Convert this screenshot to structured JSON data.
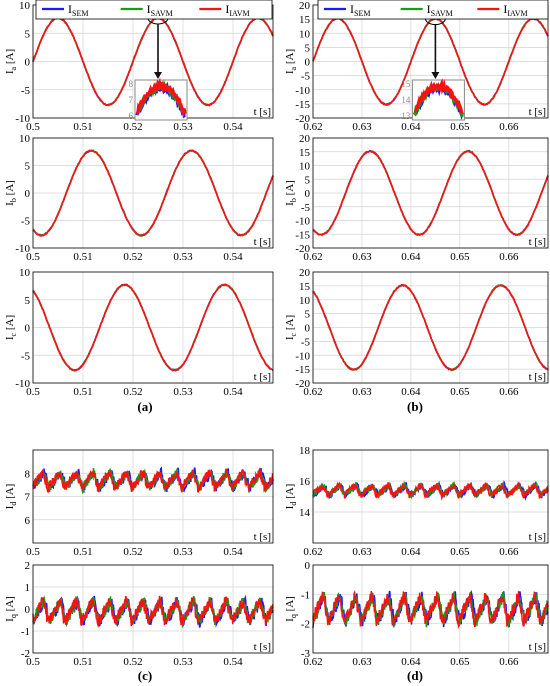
{
  "colors": {
    "sem": "#1a1aff",
    "savm": "#10a010",
    "iavm": "#ff1010",
    "arrow": "#111111",
    "zoom": "#888888"
  },
  "legend": {
    "items": [
      {
        "base": "I",
        "sub": "SEM",
        "color": "#1a1aff"
      },
      {
        "base": "I",
        "sub": "SAVM",
        "color": "#10a010"
      },
      {
        "base": "I",
        "sub": "IAVM",
        "color": "#ff1010"
      }
    ]
  },
  "captions": [
    "(a)",
    "(b)",
    "(c)",
    "(d)"
  ],
  "chart_data": [
    {
      "id": "a-ia",
      "type": "line",
      "ylabel": {
        "base": "I",
        "sub": "a",
        "unit": " [A]"
      },
      "xlabel": "t [s]",
      "xlim": [
        0.5,
        0.548
      ],
      "ylim": [
        -10,
        10
      ],
      "xticks": [
        "0.5",
        "0.51",
        "0.52",
        "0.53",
        "0.54"
      ],
      "yticks": [
        "-10",
        "-5",
        "0",
        "5",
        "10"
      ],
      "grid": true,
      "waveform": {
        "kind": "sine",
        "amplitude": 7.7,
        "period": 0.02,
        "phase_deg": 0
      },
      "inset": {
        "yticks": [
          "6",
          "7",
          "8"
        ],
        "note": "zoom of peak near t=0.525"
      }
    },
    {
      "id": "a-ib",
      "type": "line",
      "ylabel": {
        "base": "I",
        "sub": "b",
        "unit": " [A]"
      },
      "xlabel": "t [s]",
      "xlim": [
        0.5,
        0.548
      ],
      "ylim": [
        -10,
        10
      ],
      "xticks": [
        "0.5",
        "0.51",
        "0.52",
        "0.53",
        "0.54"
      ],
      "yticks": [
        "-10",
        "-5",
        "0",
        "5",
        "10"
      ],
      "grid": true,
      "waveform": {
        "kind": "sine",
        "amplitude": 7.7,
        "period": 0.02,
        "phase_deg": -120
      }
    },
    {
      "id": "a-ic",
      "type": "line",
      "ylabel": {
        "base": "I",
        "sub": "c",
        "unit": " [A]"
      },
      "xlabel": "t [s]",
      "xlim": [
        0.5,
        0.548
      ],
      "ylim": [
        -10,
        10
      ],
      "xticks": [
        "0.5",
        "0.51",
        "0.52",
        "0.53",
        "0.54"
      ],
      "yticks": [
        "-10",
        "-5",
        "0",
        "5",
        "10"
      ],
      "grid": true,
      "waveform": {
        "kind": "sine",
        "amplitude": 7.7,
        "period": 0.02,
        "phase_deg": 120
      }
    },
    {
      "id": "b-ia",
      "type": "line",
      "ylabel": {
        "base": "I",
        "sub": "a",
        "unit": " [A]"
      },
      "xlabel": "t [s]",
      "xlim": [
        0.62,
        0.668
      ],
      "ylim": [
        -20,
        20
      ],
      "xticks": [
        "0.62",
        "0.63",
        "0.64",
        "0.65",
        "0.66"
      ],
      "yticks": [
        "-20",
        "-15",
        "-10",
        "-5",
        "0",
        "5",
        "10",
        "15",
        "20"
      ],
      "grid": true,
      "waveform": {
        "kind": "sine",
        "amplitude": 15.2,
        "period": 0.02,
        "phase_deg": 0
      },
      "inset": {
        "yticks": [
          "13",
          "14",
          "15"
        ],
        "note": "zoom of peak near t=0.645"
      }
    },
    {
      "id": "b-ib",
      "type": "line",
      "ylabel": {
        "base": "I",
        "sub": "b",
        "unit": " [A]"
      },
      "xlabel": "t [s]",
      "xlim": [
        0.62,
        0.668
      ],
      "ylim": [
        -20,
        20
      ],
      "xticks": [
        "0.62",
        "0.63",
        "0.64",
        "0.65",
        "0.66"
      ],
      "yticks": [
        "-20",
        "-15",
        "-10",
        "-5",
        "0",
        "5",
        "10",
        "15",
        "20"
      ],
      "grid": true,
      "waveform": {
        "kind": "sine",
        "amplitude": 15.2,
        "period": 0.02,
        "phase_deg": -120
      }
    },
    {
      "id": "b-ic",
      "type": "line",
      "ylabel": {
        "base": "I",
        "sub": "c",
        "unit": " [A]"
      },
      "xlabel": "t [s]",
      "xlim": [
        0.62,
        0.668
      ],
      "ylim": [
        -20,
        20
      ],
      "xticks": [
        "0.62",
        "0.63",
        "0.64",
        "0.65",
        "0.66"
      ],
      "yticks": [
        "-20",
        "-15",
        "-10",
        "-5",
        "0",
        "5",
        "10",
        "15",
        "20"
      ],
      "grid": true,
      "waveform": {
        "kind": "sine",
        "amplitude": 15.2,
        "period": 0.02,
        "phase_deg": 120
      }
    },
    {
      "id": "c-id",
      "type": "line",
      "ylabel": {
        "base": "I",
        "sub": "d",
        "unit": " [A]"
      },
      "xlabel": "t [s]",
      "xlim": [
        0.5,
        0.548
      ],
      "ylim": [
        5,
        9
      ],
      "xticks": [
        "0.5",
        "0.51",
        "0.52",
        "0.53",
        "0.54"
      ],
      "yticks": [
        "6",
        "7",
        "8"
      ],
      "grid": true,
      "waveform": {
        "kind": "ripple",
        "mean": 7.7,
        "ripple": 0.35,
        "noise": 0.2
      }
    },
    {
      "id": "c-iq",
      "type": "line",
      "ylabel": {
        "base": "I",
        "sub": "q",
        "unit": " [A]"
      },
      "xlabel": "t [s]",
      "xlim": [
        0.5,
        0.548
      ],
      "ylim": [
        -2,
        2
      ],
      "xticks": [
        "0.5",
        "0.51",
        "0.52",
        "0.53",
        "0.54"
      ],
      "yticks": [
        "-2",
        "-1",
        "0",
        "1",
        "2"
      ],
      "grid": true,
      "waveform": {
        "kind": "ripple",
        "mean": -0.1,
        "ripple": 0.5,
        "noise": 0.25
      }
    },
    {
      "id": "d-id",
      "type": "line",
      "ylabel": {
        "base": "I",
        "sub": "d",
        "unit": " [A]"
      },
      "xlabel": "t [s]",
      "xlim": [
        0.62,
        0.668
      ],
      "ylim": [
        12,
        18
      ],
      "xticks": [
        "0.62",
        "0.63",
        "0.64",
        "0.65",
        "0.66"
      ],
      "yticks": [
        "14",
        "16",
        "18"
      ],
      "grid": true,
      "waveform": {
        "kind": "ripple",
        "mean": 15.4,
        "ripple": 0.35,
        "noise": 0.2
      }
    },
    {
      "id": "d-iq",
      "type": "line",
      "ylabel": {
        "base": "I",
        "sub": "q",
        "unit": " [A]"
      },
      "xlabel": "t [s]",
      "xlim": [
        0.62,
        0.668
      ],
      "ylim": [
        -3,
        0
      ],
      "xticks": [
        "0.62",
        "0.63",
        "0.64",
        "0.65",
        "0.66"
      ],
      "yticks": [
        "-3",
        "-2",
        "-1",
        "0"
      ],
      "grid": true,
      "waveform": {
        "kind": "ripple",
        "mean": -1.5,
        "ripple": 0.45,
        "noise": 0.2
      }
    }
  ]
}
